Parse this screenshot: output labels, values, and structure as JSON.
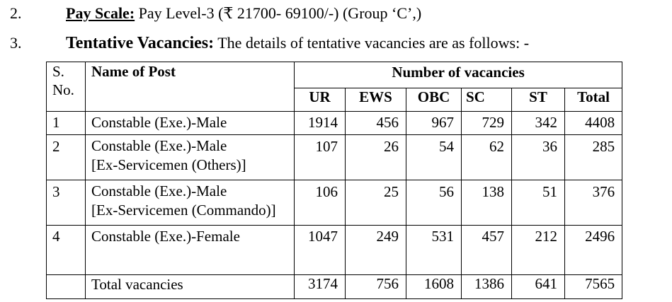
{
  "item2": {
    "number": "2.",
    "label": "Pay Scale:",
    "text": " Pay Level-3 (₹ 21700- 69100/-) (Group ‘C’,)"
  },
  "item3": {
    "number": "3.",
    "label": "Tentative Vacancies:",
    "text": " The details of tentative vacancies are as follows: -"
  },
  "table": {
    "sno_header_1": "S.",
    "sno_header_2": "No.",
    "post_header": "Name of Post",
    "vacancies_header": "Number of vacancies",
    "categories": [
      "UR",
      "EWS",
      "OBC",
      "SC",
      "ST",
      "Total"
    ],
    "rows": [
      {
        "sno": "1",
        "post_line1": "Constable (Exe.)-Male",
        "post_line2": "",
        "values": [
          "1914",
          "456",
          "967",
          "729",
          "342",
          "4408"
        ]
      },
      {
        "sno": "2",
        "post_line1": "Constable (Exe.)-Male",
        "post_line2": "[Ex-Servicemen (Others)]",
        "values": [
          "107",
          "26",
          "54",
          "62",
          "36",
          "285"
        ]
      },
      {
        "sno": "3",
        "post_line1": "Constable (Exe.)-Male",
        "post_line2": "[Ex-Servicemen (Commando)]",
        "values": [
          "106",
          "25",
          "56",
          "138",
          "51",
          "376"
        ]
      },
      {
        "sno": "4",
        "post_line1": "Constable (Exe.)-Female",
        "post_line2": "",
        "values": [
          "1047",
          "249",
          "531",
          "457",
          "212",
          "2496"
        ]
      }
    ],
    "total": {
      "label": "Total vacancies",
      "values": [
        "3174",
        "756",
        "1608",
        "1386",
        "641",
        "7565"
      ]
    }
  }
}
